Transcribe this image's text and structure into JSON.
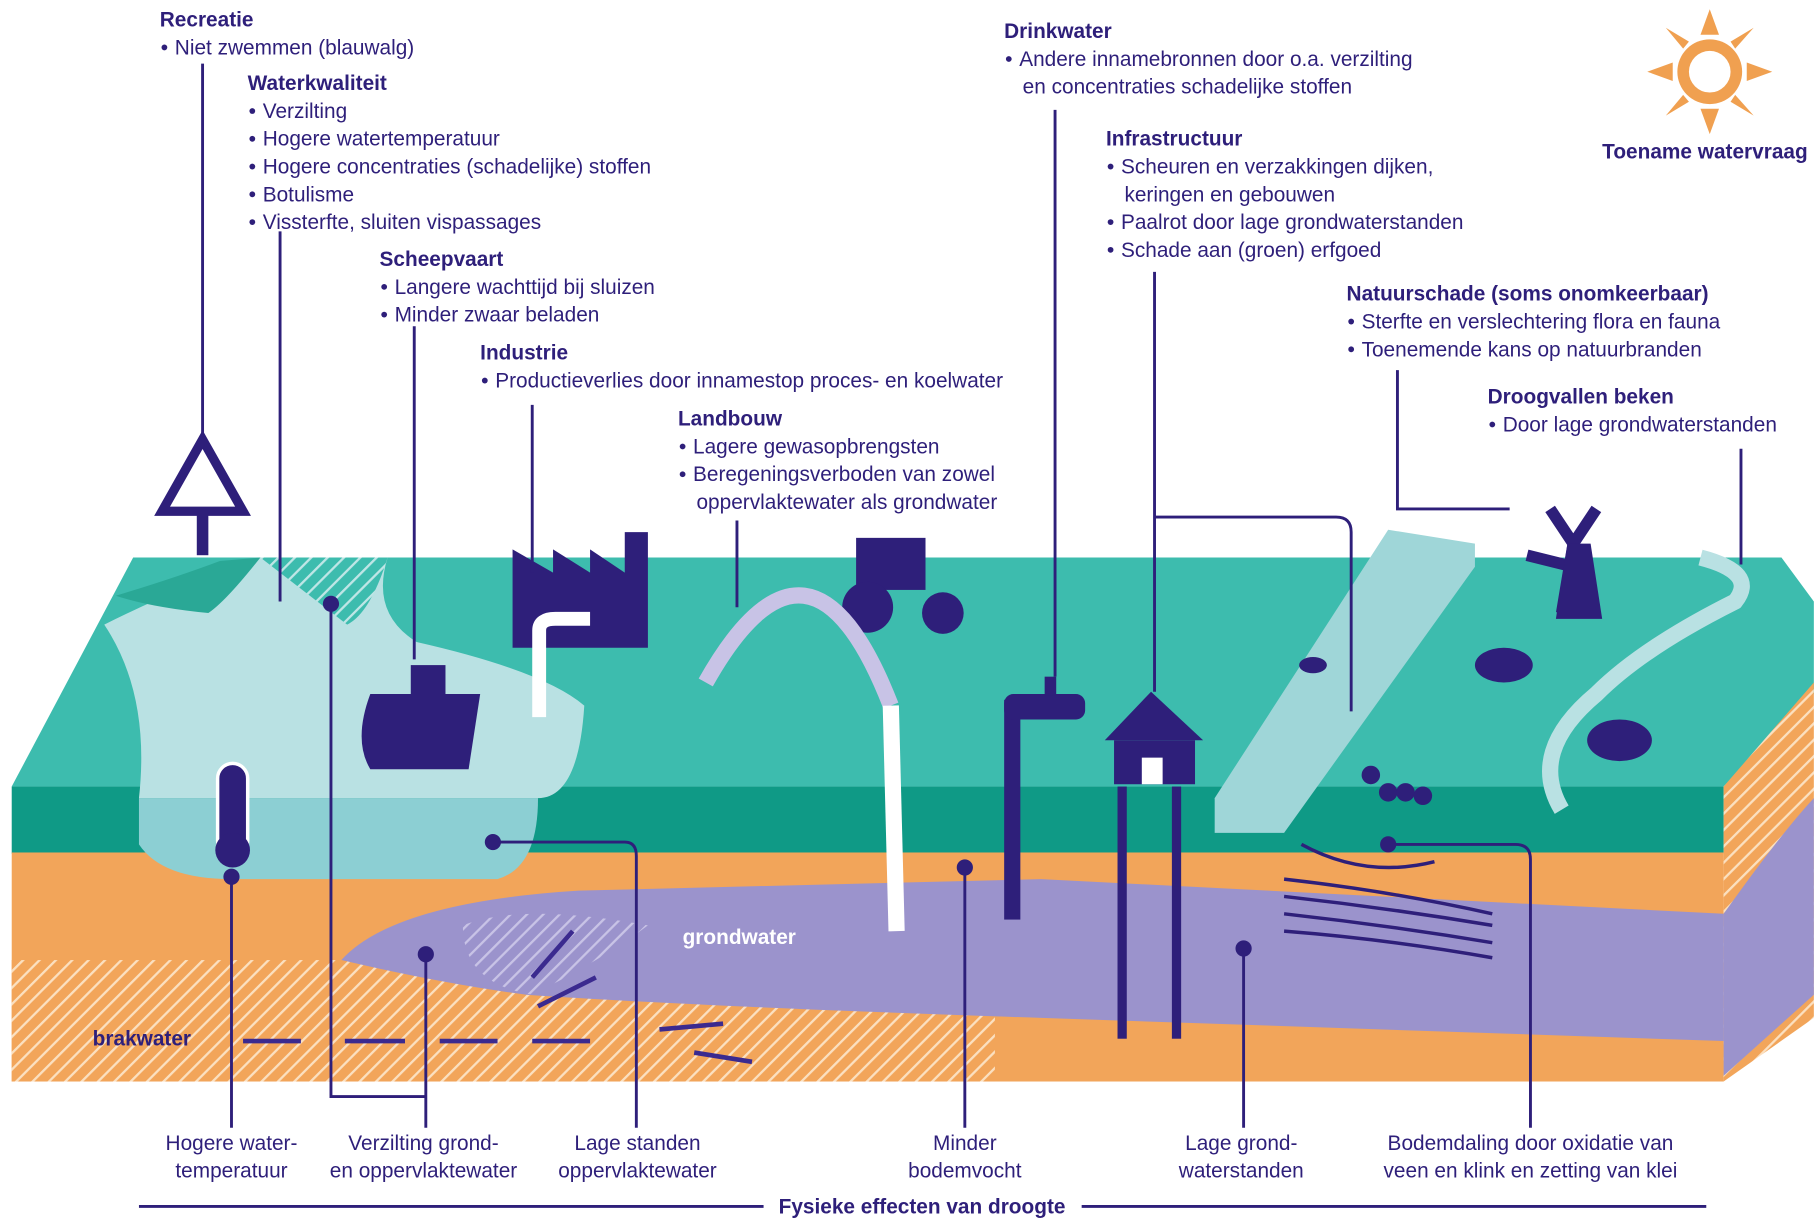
{
  "header": {
    "corner_label": "Toename watervraag"
  },
  "annotations": [
    {
      "title": "Recreatie",
      "bullets": [
        [
          "Niet zwemmen (blauwalg)"
        ]
      ]
    },
    {
      "title": "Waterkwaliteit",
      "bullets": [
        [
          "Verzilting"
        ],
        [
          "Hogere watertemperatuur"
        ],
        [
          "Hogere concentraties (schadelijke) stoffen"
        ],
        [
          "Botulisme"
        ],
        [
          "Vissterfte, sluiten vispassages"
        ]
      ]
    },
    {
      "title": "Scheepvaart",
      "bullets": [
        [
          "Langere wachttijd bij sluizen"
        ],
        [
          "Minder zwaar beladen"
        ]
      ]
    },
    {
      "title": "Industrie",
      "bullets": [
        [
          "Productieverlies door innamestop proces- en koelwater"
        ]
      ]
    },
    {
      "title": "Landbouw",
      "bullets": [
        [
          "Lagere gewasopbrengsten"
        ],
        [
          "Beregeningsverboden van zowel",
          "oppervlaktewater als grondwater"
        ]
      ]
    },
    {
      "title": "Drinkwater",
      "bullets": [
        [
          "Andere innamebronnen door o.a. verzilting",
          "en concentraties schadelijke stoffen"
        ]
      ]
    },
    {
      "title": "Infrastructuur",
      "bullets": [
        [
          "Scheuren en verzakkingen dijken,",
          "keringen en gebouwen"
        ],
        [
          "Paalrot door lage grondwaterstanden"
        ],
        [
          "Schade aan (groen) erfgoed"
        ]
      ]
    },
    {
      "title": "Natuurschade (soms onomkeerbaar)",
      "bullets": [
        [
          "Sterfte en verslechtering flora en fauna"
        ],
        [
          "Toenemende kans op natuurbranden"
        ]
      ]
    },
    {
      "title": "Droogvallen beken",
      "bullets": [
        [
          "Door lage grondwaterstanden"
        ]
      ]
    }
  ],
  "diagram_labels": {
    "groundwater": "grondwater",
    "brackish": "brakwater"
  },
  "effects": {
    "title": "Fysieke effecten van droogte",
    "items": [
      [
        "Hogere water-",
        "temperatuur"
      ],
      [
        "Verzilting grond-",
        "en oppervlaktewater"
      ],
      [
        "Lage standen",
        "oppervlaktewater"
      ],
      [
        "Minder",
        "bodemvocht"
      ],
      [
        "Lage grond-",
        "waterstanden"
      ],
      [
        "Bodemdaling door oxidatie van",
        "veen en klink en zetting van klei"
      ]
    ]
  }
}
